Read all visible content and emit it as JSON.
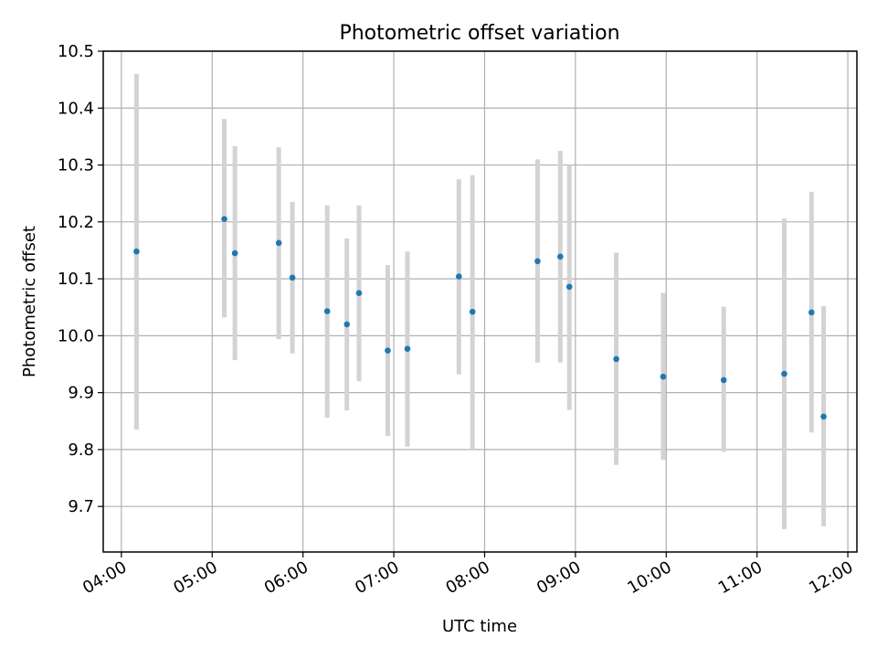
{
  "chart_data": {
    "type": "scatter",
    "title": "Photometric offset variation",
    "xlabel": "UTC time",
    "ylabel": "Photometric offset",
    "x_tick_labels": [
      "04:00",
      "05:00",
      "06:00",
      "07:00",
      "08:00",
      "09:00",
      "10:00",
      "11:00",
      "12:00"
    ],
    "y_tick_labels": [
      "9.7",
      "9.8",
      "9.9",
      "10.0",
      "10.1",
      "10.2",
      "10.3",
      "10.4",
      "10.5"
    ],
    "xlim": [
      "03:48",
      "12:06"
    ],
    "ylim": [
      9.62,
      10.5
    ],
    "grid": true,
    "series": [
      {
        "marker_color": "#1f77b4",
        "errorbar_color": "#d3d3d3",
        "points": [
          {
            "x": "04:10",
            "y": 10.148,
            "ylo": 9.835,
            "yhi": 10.46
          },
          {
            "x": "05:08",
            "y": 10.205,
            "ylo": 10.032,
            "yhi": 10.381
          },
          {
            "x": "05:15",
            "y": 10.145,
            "ylo": 9.957,
            "yhi": 10.333
          },
          {
            "x": "05:44",
            "y": 10.163,
            "ylo": 9.994,
            "yhi": 10.331
          },
          {
            "x": "05:53",
            "y": 10.102,
            "ylo": 9.969,
            "yhi": 10.235
          },
          {
            "x": "06:16",
            "y": 10.043,
            "ylo": 9.856,
            "yhi": 10.229
          },
          {
            "x": "06:29",
            "y": 10.02,
            "ylo": 9.869,
            "yhi": 10.171
          },
          {
            "x": "06:37",
            "y": 10.075,
            "ylo": 9.92,
            "yhi": 10.229
          },
          {
            "x": "06:56",
            "y": 9.974,
            "ylo": 9.824,
            "yhi": 10.124
          },
          {
            "x": "07:09",
            "y": 9.977,
            "ylo": 9.805,
            "yhi": 10.148
          },
          {
            "x": "07:43",
            "y": 10.104,
            "ylo": 9.932,
            "yhi": 10.275
          },
          {
            "x": "07:52",
            "y": 10.042,
            "ylo": 9.8,
            "yhi": 10.282
          },
          {
            "x": "08:35",
            "y": 10.131,
            "ylo": 9.953,
            "yhi": 10.31
          },
          {
            "x": "08:50",
            "y": 10.139,
            "ylo": 9.953,
            "yhi": 10.325
          },
          {
            "x": "08:56",
            "y": 10.086,
            "ylo": 9.87,
            "yhi": 10.3
          },
          {
            "x": "09:27",
            "y": 9.959,
            "ylo": 9.773,
            "yhi": 10.146
          },
          {
            "x": "09:58",
            "y": 9.928,
            "ylo": 9.782,
            "yhi": 10.075
          },
          {
            "x": "10:38",
            "y": 9.922,
            "ylo": 9.796,
            "yhi": 10.051
          },
          {
            "x": "11:18",
            "y": 9.933,
            "ylo": 9.66,
            "yhi": 10.206
          },
          {
            "x": "11:36",
            "y": 10.041,
            "ylo": 9.83,
            "yhi": 10.253
          },
          {
            "x": "11:44",
            "y": 9.858,
            "ylo": 9.665,
            "yhi": 10.052
          }
        ]
      }
    ]
  }
}
